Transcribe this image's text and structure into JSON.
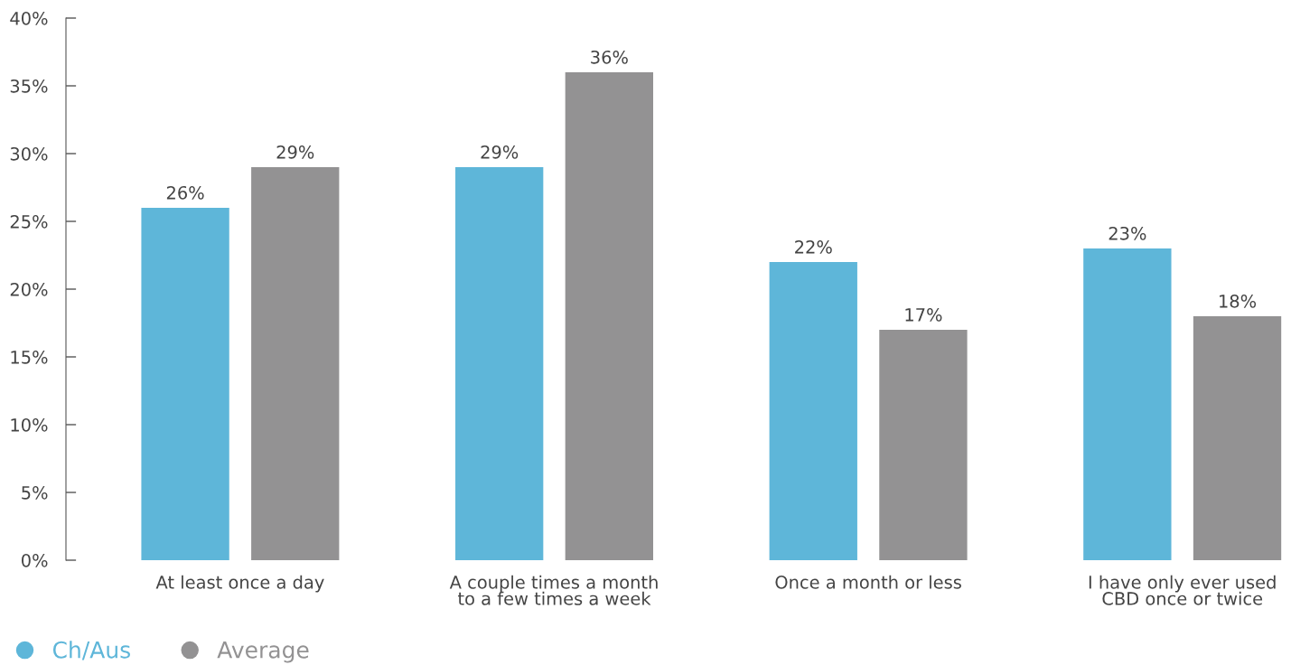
{
  "chart_data": {
    "type": "bar",
    "categories": [
      "At least once a day",
      "A couple times a month\nto a few times a week",
      "Once a month or less",
      "I have only ever used\nCBD once or twice"
    ],
    "series": [
      {
        "name": "Ch/Aus",
        "color": "#5eb6d9",
        "values": [
          26,
          29,
          22,
          23
        ]
      },
      {
        "name": "Average",
        "color": "#939293",
        "values": [
          29,
          36,
          17,
          18
        ]
      }
    ],
    "ylim": [
      0,
      40
    ],
    "yticks": [
      {
        "value": 0,
        "label": "0%"
      },
      {
        "value": 5,
        "label": "5%"
      },
      {
        "value": 10,
        "label": "10%"
      },
      {
        "value": 15,
        "label": "15%"
      },
      {
        "value": 20,
        "label": "20%"
      },
      {
        "value": 25,
        "label": "25%"
      },
      {
        "value": 30,
        "label": "30%"
      },
      {
        "value": 35,
        "label": "35%"
      },
      {
        "value": 40,
        "label": "40%"
      }
    ],
    "value_labels": [
      [
        "26%",
        "29%",
        "22%",
        "23%"
      ],
      [
        "29%",
        "36%",
        "17%",
        "18%"
      ]
    ],
    "grid": false,
    "legend": "bottom left"
  }
}
